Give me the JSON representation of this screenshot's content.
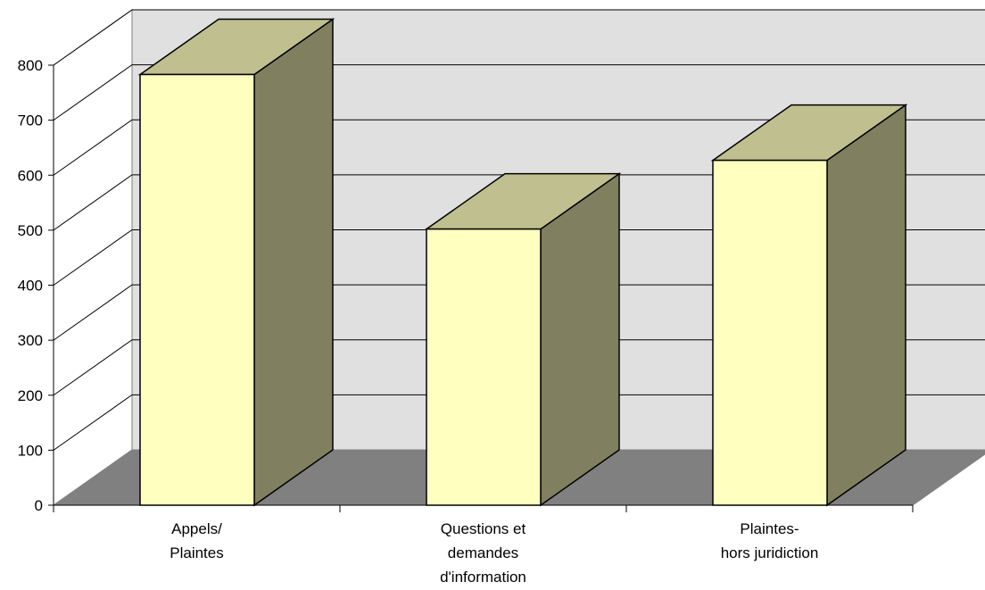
{
  "chart_data": {
    "type": "bar",
    "style": "3d-column",
    "categories": [
      [
        "Appels/",
        "Plaintes"
      ],
      [
        "Questions et",
        "demandes",
        "d'information"
      ],
      [
        "Plaintes-",
        "hors juridiction"
      ]
    ],
    "values": [
      783,
      502,
      627
    ],
    "ylim": [
      0,
      800
    ],
    "yticks": [
      "0",
      "100",
      "200",
      "300",
      "400",
      "500",
      "600",
      "700",
      "800"
    ],
    "grid": true,
    "legend": "none",
    "colors": {
      "bar_front": "#FFFFC0",
      "bar_top": "#C0BF8F",
      "bar_side": "#808060",
      "floor": "#808080",
      "back_wall": "#E0E0E0",
      "side_wall": "#FFFFFF",
      "edge": "#000000"
    }
  }
}
